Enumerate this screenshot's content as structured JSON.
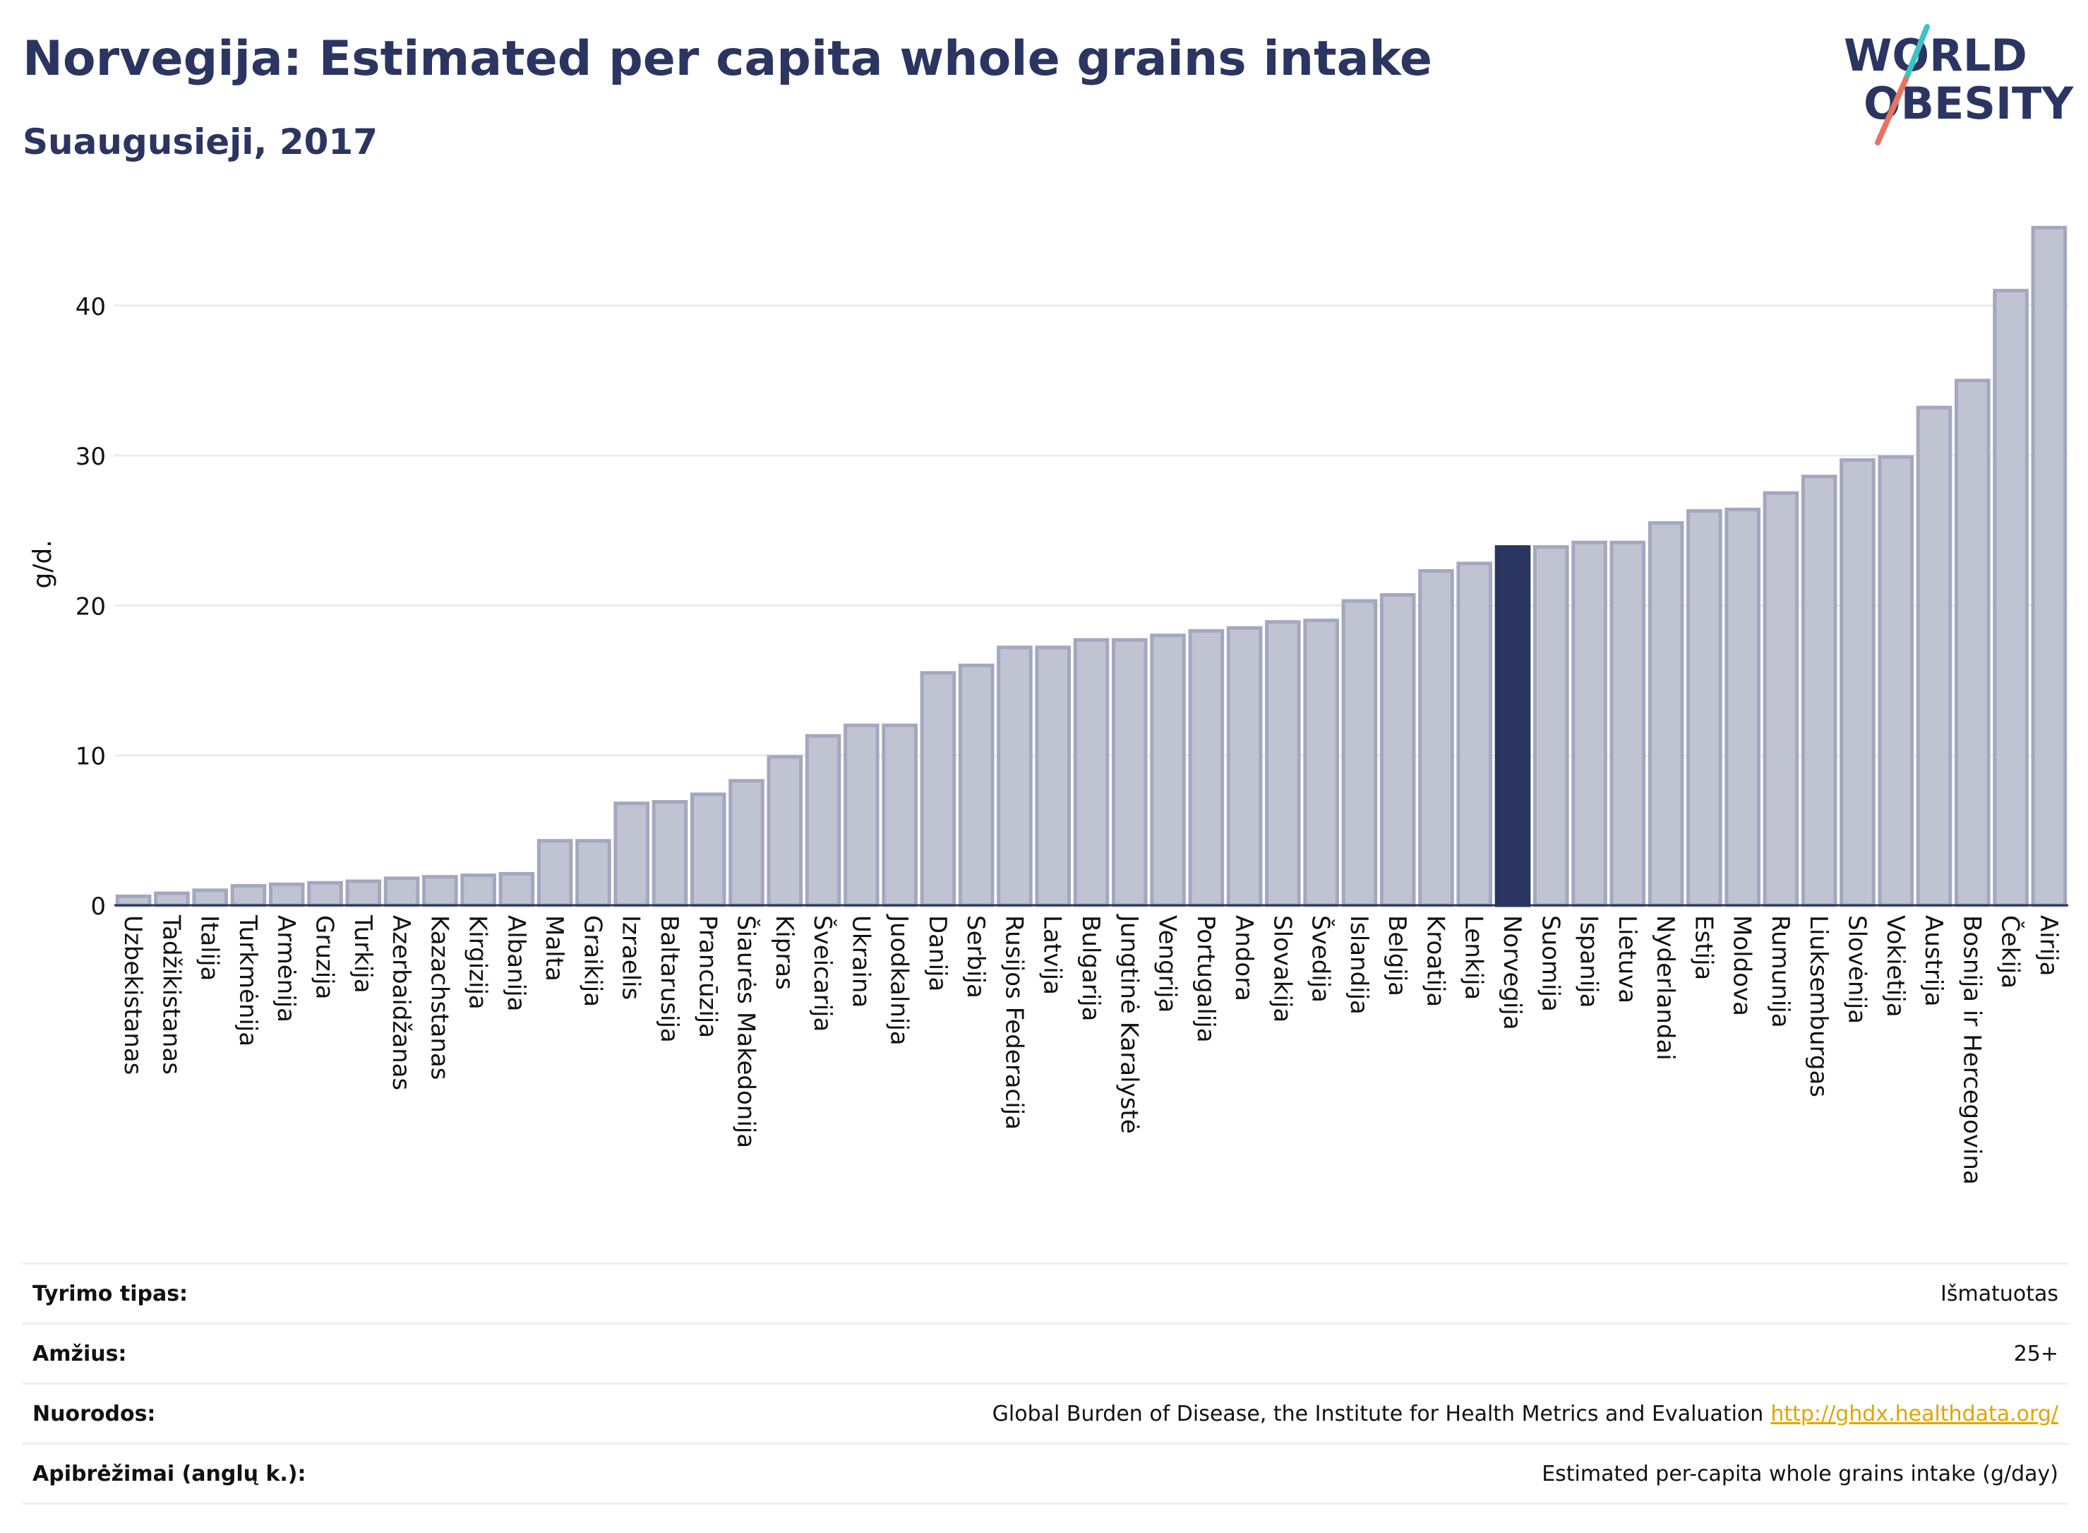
{
  "header": {
    "title": "Norvegija: Estimated per capita whole grains intake",
    "subtitle": "Suaugusieji, 2017"
  },
  "logo": {
    "line1": "WORLD",
    "line2": "OBESITY",
    "text_color": "#2b3561",
    "slash_colors": [
      "#3ec1c9",
      "#e8735e"
    ]
  },
  "colors": {
    "bar": "#bfc3d2",
    "bar_stroke": "#a3a8bf",
    "highlight": "#2b3561",
    "grid": "#e8ebf0",
    "axis": "#2b3561"
  },
  "chart_data": {
    "type": "bar",
    "ylabel": "g/d.",
    "ylim": [
      0,
      45.5
    ],
    "yticks": [
      0,
      10,
      20,
      30,
      40
    ],
    "grid": true,
    "highlight_category": "Norvegija",
    "categories": [
      "Uzbekistanas",
      "Tadžikistanas",
      "Italija",
      "Turkmėnija",
      "Armėnija",
      "Gruzija",
      "Turkija",
      "Azerbaidžanas",
      "Kazachstanas",
      "Kirgizija",
      "Albanija",
      "Malta",
      "Graikija",
      "Izraelis",
      "Baltarusija",
      "Prancūzija",
      "Šiaurės Makedonija",
      "Kipras",
      "Šveicarija",
      "Ukraina",
      "Juodkalnija",
      "Danija",
      "Serbija",
      "Rusijos Federacija",
      "Latvija",
      "Bulgarija",
      "Jungtinė Karalystė",
      "Vengrija",
      "Portugalija",
      "Andora",
      "Slovakija",
      "Švedija",
      "Islandija",
      "Belgija",
      "Kroatija",
      "Lenkija",
      "Norvegija",
      "Suomija",
      "Ispanija",
      "Lietuva",
      "Nyderlandai",
      "Estija",
      "Moldova",
      "Rumunija",
      "Liuksemburgas",
      "Slovėnija",
      "Vokietija",
      "Austrija",
      "Bosnija ir Hercegovina",
      "Čekija",
      "Airija"
    ],
    "values": [
      0.6,
      0.8,
      1.0,
      1.3,
      1.4,
      1.5,
      1.6,
      1.8,
      1.9,
      2.0,
      2.1,
      4.3,
      4.3,
      6.8,
      6.9,
      7.4,
      8.3,
      9.9,
      11.3,
      12.0,
      12.0,
      15.5,
      16.0,
      17.2,
      17.2,
      17.7,
      17.7,
      18.0,
      18.3,
      18.5,
      18.9,
      19.0,
      20.3,
      20.7,
      22.3,
      22.8,
      23.9,
      23.9,
      24.2,
      24.2,
      25.5,
      26.3,
      26.4,
      27.5,
      28.6,
      29.7,
      29.9,
      33.2,
      35.0,
      41.0,
      45.2
    ]
  },
  "meta": {
    "rows": [
      {
        "label": "Tyrimo tipas:",
        "value": "Išmatuotas"
      },
      {
        "label": "Amžius:",
        "value": "25+"
      },
      {
        "label": "Nuorodos:",
        "value": "Global Burden of Disease, the Institute for Health Metrics and Evaluation",
        "link": "http://ghdx.healthdata.org/"
      },
      {
        "label": "Apibrėžimai (anglų k.):",
        "value": "Estimated per-capita whole grains intake (g/day)"
      }
    ]
  }
}
